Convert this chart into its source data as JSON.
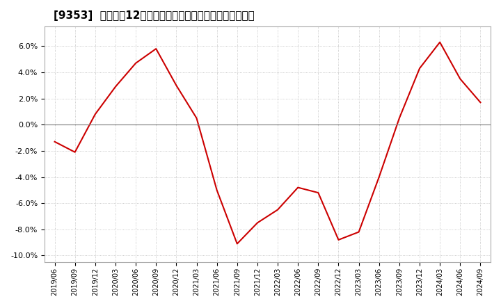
{
  "title": "[9353]  売上高の12か月移動合計の対前年同期増減率の推移",
  "line_color": "#cc0000",
  "background_color": "#ffffff",
  "plot_bg_color": "#ffffff",
  "grid_color": "#aaaaaa",
  "ylim": [
    -0.105,
    0.075
  ],
  "yticks": [
    -0.1,
    -0.08,
    -0.06,
    -0.04,
    -0.02,
    0.0,
    0.02,
    0.04,
    0.06
  ],
  "x_labels": [
    "2019/06",
    "2019/09",
    "2019/12",
    "2020/03",
    "2020/06",
    "2020/09",
    "2020/12",
    "2021/03",
    "2021/06",
    "2021/09",
    "2021/12",
    "2022/03",
    "2022/06",
    "2022/09",
    "2022/12",
    "2023/03",
    "2023/06",
    "2023/09",
    "2023/12",
    "2024/03",
    "2024/06",
    "2024/09"
  ],
  "y_values": [
    -0.013,
    -0.021,
    0.008,
    0.029,
    0.047,
    0.058,
    0.03,
    0.005,
    -0.05,
    -0.091,
    -0.075,
    -0.065,
    -0.048,
    -0.052,
    -0.088,
    -0.082,
    -0.04,
    0.005,
    0.043,
    0.063,
    0.035,
    0.017
  ]
}
